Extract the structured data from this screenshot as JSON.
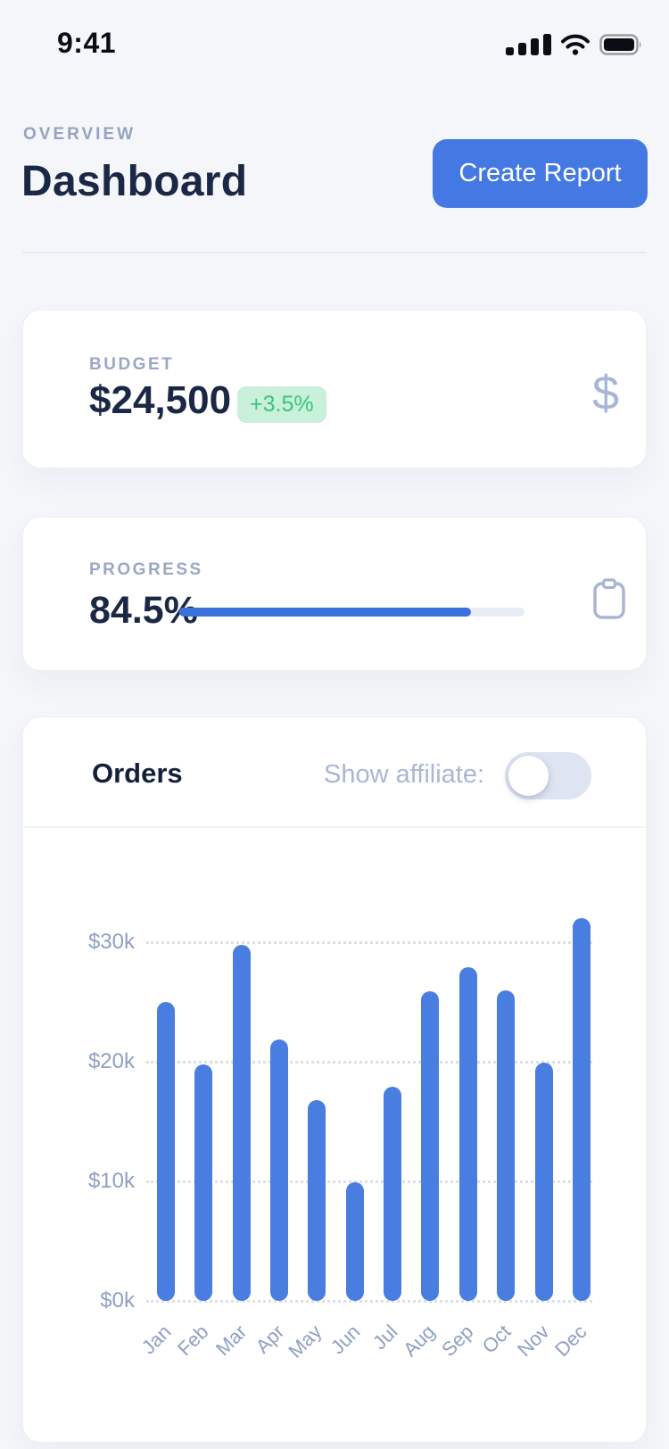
{
  "status_bar": {
    "time": "9:41"
  },
  "header": {
    "eyebrow": "OVERVIEW",
    "title": "Dashboard",
    "create_report_label": "Create Report"
  },
  "cards": {
    "budget": {
      "label": "BUDGET",
      "value": "$24,500",
      "delta": "+3.5%",
      "icon": "dollar-icon",
      "icon_glyph": "$"
    },
    "progress": {
      "label": "PROGRESS",
      "value": "84.5%",
      "percent": 84.5,
      "icon": "clipboard-icon"
    }
  },
  "orders": {
    "title": "Orders",
    "toggle_label": "Show affiliate:",
    "toggle_state": "off"
  },
  "chart_data": {
    "type": "bar",
    "title": "Orders",
    "categories": [
      "Jan",
      "Feb",
      "Mar",
      "Apr",
      "May",
      "Jun",
      "Jul",
      "Aug",
      "Sep",
      "Oct",
      "Nov",
      "Dec"
    ],
    "values": [
      25.0,
      19.8,
      29.8,
      21.9,
      16.8,
      9.9,
      17.9,
      25.9,
      27.9,
      26.0,
      19.9,
      32.0
    ],
    "value_unit": "thousand USD",
    "yticks": [
      0,
      10,
      20,
      30
    ],
    "ytick_labels": [
      "$0k",
      "$10k",
      "$20k",
      "$30k"
    ],
    "ylim": [
      0,
      34
    ],
    "grid": "dotted-horizontal",
    "legend": "none",
    "bar_color": "#4a7de0"
  },
  "colors": {
    "accent_blue": "#4478e3",
    "bar_blue": "#4a7de0",
    "progress_blue": "#3a70dc",
    "dark_navy": "#1b2845",
    "muted_label": "#9aa7c4",
    "delta_green_text": "#3cc47e",
    "delta_green_bg": "#c8f0da",
    "page_bg": "#f4f6f9",
    "card_bg": "#ffffff"
  }
}
